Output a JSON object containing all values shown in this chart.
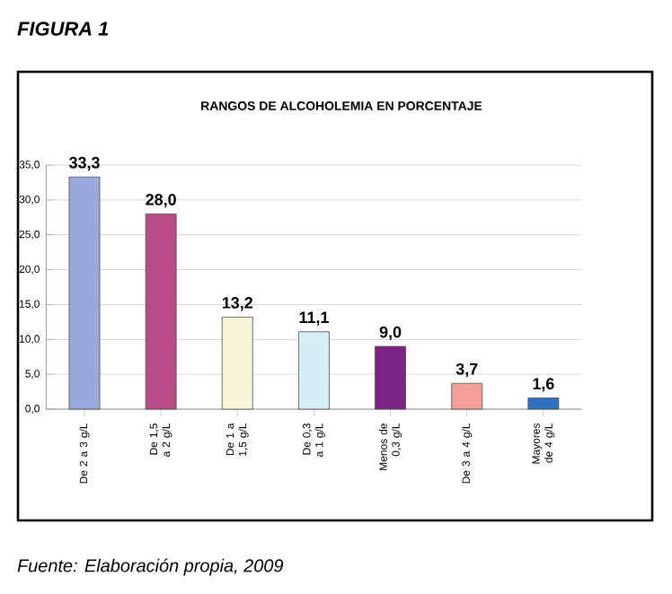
{
  "chart_data": {
    "type": "bar",
    "title": "RANGOS DE ALCOHOLEMIA EN PORCENTAJE",
    "categories": [
      "De 2 a 3 g/L",
      "De 1,5 a 2 g/L",
      "De 1 a 1,5 g/L",
      "De 0,3 a 1 g/L",
      "Menos de 0,3 g/L",
      "De 3 a 4 g/L",
      "Mayores de 4 g/L"
    ],
    "values": [
      33.3,
      28.0,
      13.2,
      11.1,
      9.0,
      3.7,
      1.6
    ],
    "value_labels": [
      "33,3",
      "28,0",
      "13,2",
      "11,1",
      "9,0",
      "3,7",
      "1,6"
    ],
    "colors": [
      "#9aa8dc",
      "#b94c86",
      "#f7f5d8",
      "#d6eef6",
      "#7c2483",
      "#f4a098",
      "#2f6fc1"
    ],
    "ylim": [
      0,
      35
    ],
    "yticks": [
      {
        "value": 0,
        "label": "0,0"
      },
      {
        "value": 5,
        "label": "5,0"
      },
      {
        "value": 10,
        "label": "10,0"
      },
      {
        "value": 15,
        "label": "15,0"
      },
      {
        "value": 20,
        "label": "20,0"
      },
      {
        "value": 25,
        "label": "25,0"
      },
      {
        "value": 30,
        "label": "30,0"
      },
      {
        "value": 35,
        "label": "35,0"
      }
    ],
    "grid": "y",
    "annotations": [
      "FIGURA 1",
      "Fuente: Elaboración propia, 2009"
    ]
  }
}
